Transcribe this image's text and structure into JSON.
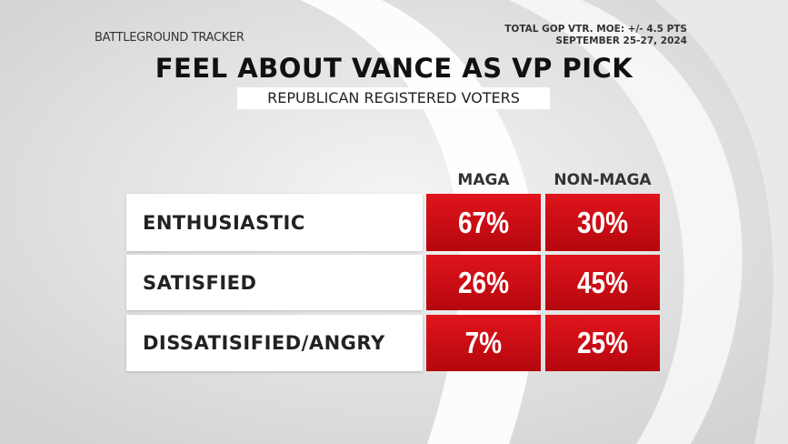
{
  "header": {
    "brand": "BATTLEGROUND TRACKER",
    "note_lines": [
      "TOTAL GOP VTR. MOE: +/- 4.5 PTS",
      "SEPTEMBER 25-27, 2024"
    ]
  },
  "title": "FEEL ABOUT VANCE AS VP PICK",
  "subtitle": "REPUBLICAN REGISTERED VOTERS",
  "table": {
    "columns": [
      "MAGA",
      "NON-MAGA"
    ],
    "rows": [
      {
        "label": "ENTHUSIASTIC",
        "cells": [
          "67%",
          "30%"
        ]
      },
      {
        "label": "SATISFIED",
        "cells": [
          "26%",
          "45%"
        ]
      },
      {
        "label": "DISSATISIFIED/ANGRY",
        "cells": [
          "7%",
          "25%"
        ]
      }
    ]
  }
}
